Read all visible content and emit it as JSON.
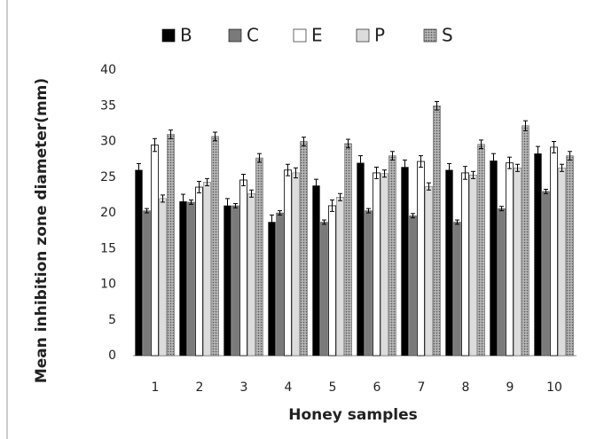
{
  "chart_data": {
    "type": "grouped_bar_error",
    "x_label": "Honey samples",
    "y_label": "Mean inhibition zone diameter(mm)",
    "categories": [
      "1",
      "2",
      "3",
      "4",
      "5",
      "6",
      "7",
      "8",
      "9",
      "10"
    ],
    "series": [
      {
        "name": "B",
        "color": "#000000",
        "values": [
          26,
          21.6,
          21,
          18.7,
          23.8,
          27,
          26.4,
          26,
          27.3,
          28.3
        ],
        "errors": [
          0.9,
          1,
          1,
          1,
          0.9,
          1,
          1,
          0.9,
          1,
          1
        ]
      },
      {
        "name": "C",
        "color": "#7a7a7a",
        "values": [
          20.3,
          21.5,
          21,
          20,
          18.7,
          20.3,
          19.6,
          18.7,
          20.6,
          23
        ],
        "errors": [
          0.3,
          0.3,
          0.3,
          0.3,
          0.3,
          0.3,
          0.3,
          0.3,
          0.3,
          0.3
        ]
      },
      {
        "name": "E",
        "color": "#ffffff",
        "values": [
          29.5,
          23.6,
          24.6,
          26,
          21,
          25.6,
          27.2,
          25.6,
          27,
          29.2
        ],
        "errors": [
          0.9,
          0.8,
          0.8,
          0.8,
          0.8,
          0.8,
          0.8,
          0.9,
          0.8,
          0.8
        ]
      },
      {
        "name": "P",
        "color": "#dcdcdc",
        "values": [
          22,
          24.3,
          22.7,
          25.6,
          22.2,
          25.5,
          23.7,
          25.3,
          26.3,
          26.3
        ],
        "errors": [
          0.5,
          0.5,
          0.5,
          0.7,
          0.5,
          0.5,
          0.5,
          0.5,
          0.5,
          0.5
        ]
      },
      {
        "name": "S",
        "color": "#a0a0a0",
        "fill_pattern": "dots",
        "values": [
          31,
          30.7,
          27.7,
          30,
          29.7,
          28,
          35,
          29.6,
          32.2,
          28
        ],
        "errors": [
          0.6,
          0.6,
          0.6,
          0.6,
          0.6,
          0.6,
          0.6,
          0.6,
          0.7,
          0.6
        ]
      }
    ],
    "ylim": [
      0,
      40
    ],
    "yticks": [
      0,
      5,
      10,
      15,
      20,
      25,
      30,
      35,
      40
    ],
    "grid": false,
    "legend": "top"
  }
}
